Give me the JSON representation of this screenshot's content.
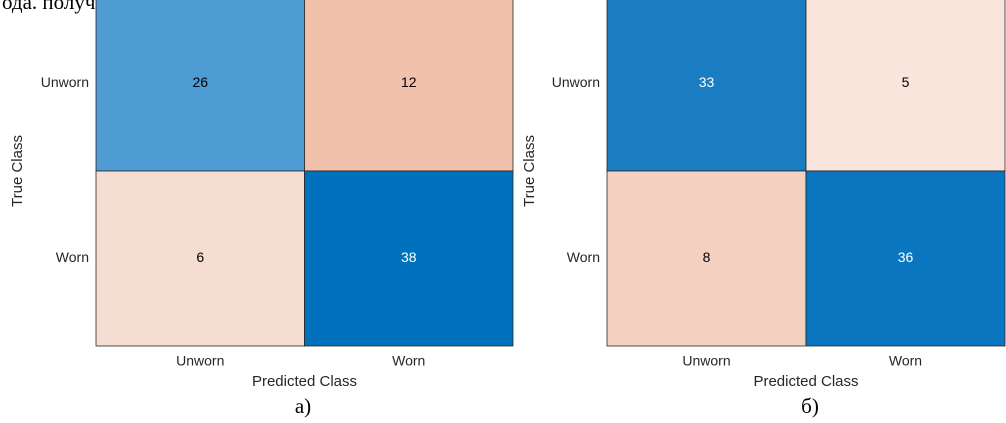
{
  "header_text": "ода. получения входных данных.",
  "chart_data": [
    {
      "type": "heatmap",
      "caption": "а)",
      "xlabel": "Predicted Class",
      "ylabel": "True Class",
      "x_categories": [
        "Unworn",
        "Worn"
      ],
      "y_categories": [
        "Unworn",
        "Worn"
      ],
      "values": [
        [
          26,
          12
        ],
        [
          6,
          38
        ]
      ],
      "colors": [
        [
          "#4f9bd4",
          "#f2c1ab"
        ],
        [
          "#f6ddd2",
          "#0072bd"
        ]
      ],
      "label_colors": [
        [
          "#000000",
          "#000000"
        ],
        [
          "#000000",
          "#ffffff"
        ]
      ]
    },
    {
      "type": "heatmap",
      "caption": "б)",
      "xlabel": "Predicted Class",
      "ylabel": "True Class",
      "x_categories": [
        "Unworn",
        "Worn"
      ],
      "y_categories": [
        "Unworn",
        "Worn"
      ],
      "values": [
        [
          33,
          5
        ],
        [
          8,
          36
        ]
      ],
      "colors": [
        [
          "#1a7dc2",
          "#f9e5dc"
        ],
        [
          "#f4d0c1",
          "#0a76bf"
        ]
      ],
      "label_colors": [
        [
          "#ffffff",
          "#000000"
        ],
        [
          "#000000",
          "#ffffff"
        ]
      ]
    }
  ]
}
